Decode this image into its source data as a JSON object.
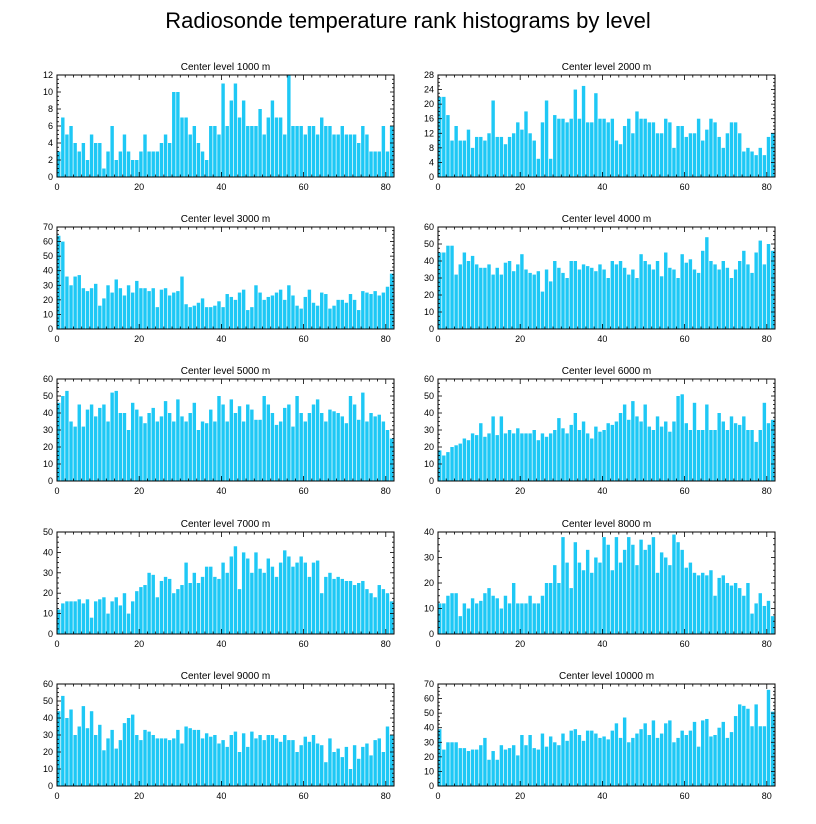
{
  "title": "Radiosonde temperature rank histograms by level",
  "bar_color": "#1ec8f5",
  "chart_data": [
    {
      "type": "bar",
      "title": "Center level 1000 m",
      "xlim": [
        0,
        82
      ],
      "xticks": [
        0,
        20,
        40,
        60,
        80
      ],
      "ylim": [
        0,
        12
      ],
      "yticks": [
        0,
        2,
        4,
        6,
        8,
        10,
        12
      ],
      "values": [
        3,
        7,
        5,
        6,
        4,
        3,
        4,
        2,
        5,
        4,
        4,
        1,
        3,
        6,
        2,
        3,
        5,
        3,
        2,
        2,
        3,
        5,
        3,
        3,
        3,
        4,
        5,
        4,
        10,
        10,
        7,
        7,
        5,
        6,
        4,
        3,
        2,
        6,
        6,
        5,
        11,
        6,
        9,
        11,
        7,
        9,
        6,
        6,
        6,
        8,
        5,
        7,
        9,
        7,
        7,
        5,
        12,
        6,
        6,
        6,
        5,
        6,
        6,
        5,
        7,
        6,
        6,
        5,
        5,
        6,
        5,
        5,
        5,
        4,
        6,
        5,
        3,
        3,
        3,
        6,
        3,
        6
      ]
    },
    {
      "type": "bar",
      "title": "Center level 2000 m",
      "xlim": [
        0,
        82
      ],
      "xticks": [
        0,
        20,
        40,
        60,
        80
      ],
      "ylim": [
        0,
        28
      ],
      "yticks": [
        0,
        4,
        8,
        12,
        16,
        20,
        24,
        28
      ],
      "values": [
        22,
        22,
        17,
        10,
        14,
        10,
        10,
        13,
        8,
        11,
        11,
        10,
        12,
        21,
        11,
        11,
        9,
        11,
        12,
        15,
        13,
        18,
        12,
        10,
        5,
        15,
        21,
        5,
        17,
        16,
        16,
        15,
        16,
        24,
        16,
        25,
        15,
        15,
        23,
        16,
        16,
        15,
        16,
        10,
        9,
        14,
        16,
        12,
        18,
        16,
        16,
        15,
        15,
        12,
        12,
        16,
        15,
        8,
        14,
        14,
        11,
        12,
        12,
        16,
        10,
        13,
        16,
        15,
        11,
        8,
        12,
        15,
        15,
        12,
        7,
        8,
        7,
        6,
        8,
        6,
        11,
        12
      ]
    },
    {
      "type": "bar",
      "title": "Center level 3000 m",
      "xlim": [
        0,
        82
      ],
      "xticks": [
        0,
        20,
        40,
        60,
        80
      ],
      "ylim": [
        0,
        70
      ],
      "yticks": [
        0,
        10,
        20,
        30,
        40,
        50,
        60,
        70
      ],
      "values": [
        64,
        60,
        36,
        30,
        36,
        37,
        28,
        26,
        28,
        31,
        16,
        21,
        30,
        25,
        34,
        28,
        23,
        30,
        25,
        33,
        28,
        28,
        26,
        28,
        15,
        27,
        28,
        23,
        25,
        26,
        36,
        17,
        15,
        16,
        18,
        21,
        15,
        15,
        16,
        19,
        15,
        24,
        22,
        20,
        25,
        27,
        13,
        15,
        30,
        25,
        20,
        22,
        23,
        25,
        27,
        20,
        30,
        23,
        16,
        14,
        22,
        27,
        18,
        16,
        25,
        24,
        14,
        16,
        20,
        20,
        18,
        24,
        20,
        13,
        26,
        25,
        24,
        26,
        23,
        25,
        29,
        38
      ]
    },
    {
      "type": "bar",
      "title": "Center level 4000 m",
      "xlim": [
        0,
        82
      ],
      "xticks": [
        0,
        20,
        40,
        60,
        80
      ],
      "ylim": [
        0,
        60
      ],
      "yticks": [
        0,
        10,
        20,
        30,
        40,
        50,
        60
      ],
      "values": [
        45,
        45,
        49,
        49,
        32,
        38,
        45,
        40,
        43,
        38,
        36,
        36,
        38,
        32,
        36,
        32,
        39,
        40,
        34,
        38,
        44,
        35,
        33,
        32,
        34,
        22,
        35,
        28,
        40,
        36,
        33,
        30,
        40,
        40,
        35,
        38,
        37,
        36,
        34,
        38,
        35,
        30,
        40,
        38,
        40,
        36,
        32,
        35,
        30,
        44,
        40,
        38,
        35,
        40,
        31,
        45,
        36,
        35,
        30,
        44,
        39,
        41,
        35,
        33,
        46,
        54,
        40,
        38,
        35,
        40,
        36,
        30,
        35,
        40,
        46,
        38,
        33,
        45,
        52,
        38,
        50,
        46
      ]
    },
    {
      "type": "bar",
      "title": "Center level 5000 m",
      "xlim": [
        0,
        82
      ],
      "xticks": [
        0,
        20,
        40,
        60,
        80
      ],
      "ylim": [
        0,
        60
      ],
      "yticks": [
        0,
        10,
        20,
        30,
        40,
        50,
        60
      ],
      "values": [
        46,
        50,
        53,
        35,
        32,
        45,
        32,
        42,
        45,
        38,
        43,
        45,
        35,
        52,
        53,
        40,
        40,
        30,
        46,
        42,
        38,
        34,
        40,
        43,
        35,
        38,
        47,
        40,
        35,
        48,
        38,
        35,
        40,
        46,
        30,
        35,
        34,
        42,
        35,
        50,
        45,
        35,
        48,
        40,
        44,
        35,
        45,
        42,
        36,
        36,
        50,
        45,
        40,
        33,
        35,
        43,
        45,
        32,
        50,
        40,
        35,
        40,
        45,
        48,
        40,
        35,
        42,
        41,
        40,
        38,
        34,
        50,
        45,
        36,
        52,
        35,
        40,
        38,
        39,
        35,
        30,
        25
      ]
    },
    {
      "type": "bar",
      "title": "Center level 6000 m",
      "xlim": [
        0,
        82
      ],
      "xticks": [
        0,
        20,
        40,
        60,
        80
      ],
      "ylim": [
        0,
        60
      ],
      "yticks": [
        0,
        10,
        20,
        30,
        40,
        50,
        60
      ],
      "values": [
        18,
        15,
        17,
        20,
        21,
        22,
        25,
        24,
        28,
        27,
        34,
        26,
        28,
        38,
        27,
        38,
        28,
        30,
        28,
        31,
        28,
        28,
        28,
        30,
        24,
        28,
        26,
        28,
        30,
        37,
        31,
        28,
        33,
        40,
        30,
        35,
        28,
        25,
        32,
        29,
        30,
        34,
        33,
        35,
        40,
        45,
        36,
        47,
        38,
        35,
        45,
        32,
        30,
        38,
        32,
        35,
        29,
        35,
        50,
        51,
        34,
        30,
        46,
        30,
        30,
        45,
        30,
        30,
        40,
        35,
        30,
        38,
        34,
        33,
        38,
        30,
        30,
        23,
        30,
        46,
        34,
        36
      ]
    },
    {
      "type": "bar",
      "title": "Center level 7000 m",
      "xlim": [
        0,
        82
      ],
      "xticks": [
        0,
        20,
        40,
        60,
        80
      ],
      "ylim": [
        0,
        50
      ],
      "yticks": [
        0,
        10,
        20,
        30,
        40,
        50
      ],
      "values": [
        12,
        15,
        16,
        16,
        16,
        17,
        15,
        17,
        8,
        16,
        17,
        18,
        10,
        16,
        18,
        14,
        20,
        10,
        16,
        21,
        23,
        24,
        30,
        29,
        18,
        26,
        28,
        27,
        20,
        22,
        24,
        35,
        25,
        30,
        25,
        28,
        33,
        33,
        28,
        27,
        35,
        30,
        38,
        43,
        22,
        40,
        37,
        30,
        40,
        32,
        30,
        37,
        33,
        28,
        35,
        41,
        38,
        33,
        35,
        38,
        35,
        28,
        35,
        36,
        20,
        28,
        30,
        27,
        28,
        27,
        26,
        26,
        24,
        25,
        26,
        22,
        20,
        18,
        24,
        22,
        20,
        16
      ]
    },
    {
      "type": "bar",
      "title": "Center level 8000 m",
      "xlim": [
        0,
        82
      ],
      "xticks": [
        0,
        20,
        40,
        60,
        80
      ],
      "ylim": [
        0,
        40
      ],
      "yticks": [
        0,
        10,
        20,
        30,
        40
      ],
      "values": [
        12,
        12,
        15,
        16,
        16,
        7,
        12,
        10,
        14,
        12,
        13,
        16,
        18,
        15,
        14,
        10,
        15,
        12,
        20,
        12,
        12,
        12,
        15,
        12,
        12,
        15,
        20,
        20,
        27,
        20,
        38,
        28,
        18,
        36,
        28,
        25,
        33,
        24,
        30,
        28,
        38,
        35,
        25,
        38,
        28,
        33,
        38,
        35,
        27,
        37,
        33,
        35,
        38,
        24,
        32,
        30,
        27,
        39,
        36,
        33,
        26,
        28,
        24,
        23,
        24,
        23,
        25,
        15,
        22,
        23,
        20,
        19,
        20,
        18,
        15,
        20,
        8,
        12,
        16,
        11,
        13,
        7
      ]
    },
    {
      "type": "bar",
      "title": "Center level 9000 m",
      "xlim": [
        0,
        82
      ],
      "xticks": [
        0,
        20,
        40,
        60,
        80
      ],
      "ylim": [
        0,
        60
      ],
      "yticks": [
        0,
        10,
        20,
        30,
        40,
        50,
        60
      ],
      "values": [
        44,
        53,
        40,
        45,
        30,
        35,
        47,
        34,
        44,
        30,
        36,
        21,
        28,
        33,
        22,
        27,
        37,
        40,
        42,
        30,
        27,
        33,
        32,
        30,
        28,
        28,
        28,
        27,
        28,
        33,
        25,
        35,
        34,
        33,
        33,
        28,
        31,
        29,
        30,
        25,
        27,
        23,
        30,
        32,
        20,
        31,
        23,
        32,
        28,
        30,
        27,
        30,
        30,
        28,
        26,
        30,
        27,
        27,
        20,
        24,
        29,
        26,
        30,
        25,
        24,
        14,
        28,
        20,
        22,
        17,
        23,
        10,
        24,
        16,
        23,
        25,
        18,
        27,
        28,
        20,
        35,
        30
      ]
    },
    {
      "type": "bar",
      "title": "Center level 10000 m",
      "xlim": [
        0,
        82
      ],
      "xticks": [
        0,
        20,
        40,
        60,
        80
      ],
      "ylim": [
        0,
        70
      ],
      "yticks": [
        0,
        10,
        20,
        30,
        40,
        50,
        60,
        70
      ],
      "values": [
        39,
        25,
        30,
        30,
        30,
        26,
        26,
        24,
        25,
        25,
        28,
        33,
        18,
        24,
        18,
        28,
        25,
        26,
        28,
        21,
        35,
        28,
        35,
        26,
        25,
        36,
        27,
        34,
        30,
        28,
        36,
        31,
        38,
        39,
        35,
        31,
        38,
        38,
        36,
        33,
        34,
        32,
        38,
        43,
        33,
        47,
        30,
        33,
        36,
        39,
        43,
        35,
        45,
        33,
        36,
        43,
        45,
        30,
        33,
        38,
        35,
        38,
        44,
        27,
        45,
        46,
        34,
        35,
        40,
        44,
        33,
        37,
        48,
        56,
        55,
        53,
        41,
        56,
        41,
        41,
        66,
        51
      ]
    }
  ]
}
